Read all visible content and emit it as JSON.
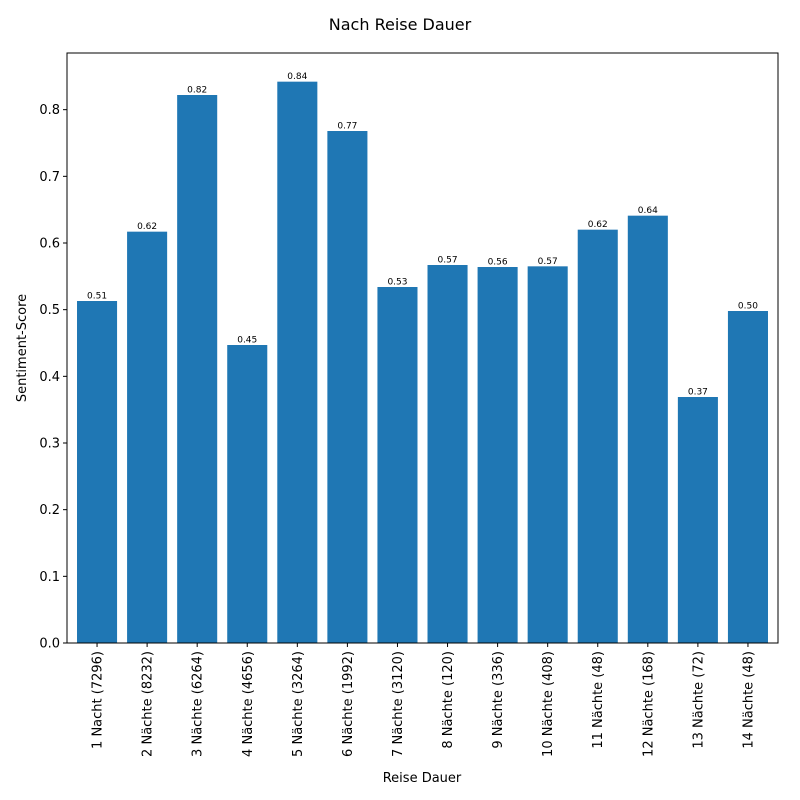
{
  "chart_data": {
    "type": "bar",
    "title": "Nach Reise Dauer",
    "xlabel": "Reise Dauer",
    "ylabel": "Sentiment-Score",
    "categories": [
      "1 Nacht (7296)",
      "2 Nächte (8232)",
      "3 Nächte (6264)",
      "4 Nächte (4656)",
      "5 Nächte (3264)",
      "6 Nächte (1992)",
      "7 Nächte (3120)",
      "8 Nächte (120)",
      "9 Nächte (336)",
      "10 Nächte (408)",
      "11 Nächte (48)",
      "12 Nächte (168)",
      "13 Nächte (72)",
      "14 Nächte (48)"
    ],
    "values": [
      0.513,
      0.617,
      0.822,
      0.447,
      0.842,
      0.768,
      0.534,
      0.567,
      0.564,
      0.565,
      0.62,
      0.641,
      0.369,
      0.498
    ],
    "value_labels": [
      "0.51",
      "0.62",
      "0.82",
      "0.45",
      "0.84",
      "0.77",
      "0.53",
      "0.57",
      "0.56",
      "0.57",
      "0.62",
      "0.64",
      "0.37",
      "0.50"
    ],
    "ylim": [
      0,
      0.885
    ],
    "yticks": [
      0.0,
      0.1,
      0.2,
      0.3,
      0.4,
      0.5,
      0.6,
      0.7,
      0.8
    ],
    "ytick_labels": [
      "0.0",
      "0.1",
      "0.2",
      "0.3",
      "0.4",
      "0.5",
      "0.6",
      "0.7",
      "0.8"
    ],
    "bar_color": "#1f77b4",
    "grid": false,
    "legend": false
  }
}
